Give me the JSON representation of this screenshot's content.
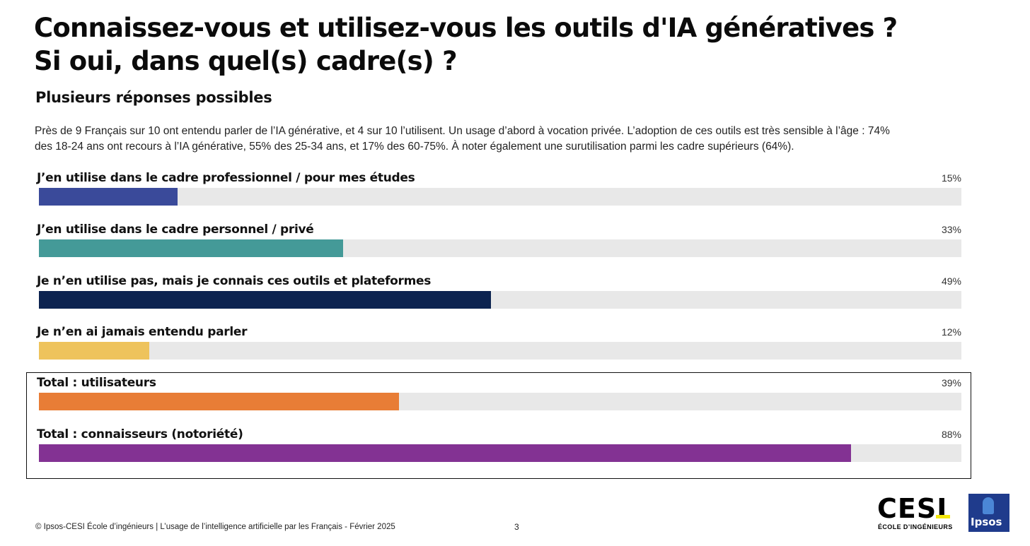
{
  "header": {
    "title_line1": "Connaissez-vous et utilisez-vous les outils d'IA génératives ?",
    "title_line2": "Si oui, dans quel(s) cadre(s) ?",
    "subtitle": "Plusieurs réponses possibles",
    "intro_line1": "Près de 9 Français sur 10 ont entendu parler de l’IA générative, et 4 sur 10 l’utilisent. Un usage d’abord à vocation privée. L’adoption de ces outils est très sensible à l’âge : 74%",
    "intro_line2": "des 18-24 ans ont recours à l’IA générative, 55% des 25-34 ans, et 17% des 60-75%. À noter également une surutilisation parmi les cadre supérieurs (64%)."
  },
  "chart_data": {
    "type": "bar",
    "orientation": "horizontal",
    "unit": "%",
    "xlim": [
      0,
      100
    ],
    "grid": false,
    "categories": [
      "J’en utilise dans le cadre professionnel / pour mes études",
      "J’en utilise dans le cadre personnel / privé",
      "Je n’en utilise pas, mais je connais ces outils et plateformes",
      "Je n’en ai jamais entendu parler",
      "Total : utilisateurs",
      "Total : connaisseurs (notoriété)"
    ],
    "values": [
      15,
      33,
      49,
      12,
      39,
      88
    ],
    "value_labels": [
      "15%",
      "33%",
      "49%",
      "12%",
      "39%",
      "88%"
    ],
    "colors": [
      "#3a4a9a",
      "#449a98",
      "#0c2350",
      "#eec35c",
      "#e87d36",
      "#833293"
    ],
    "track_color": "#e8e8e8"
  },
  "footer": {
    "source": "© Ipsos-CESI École d’ingénieurs | L’usage de l’intelligence artificielle par les Français - Février 2025",
    "page": "3"
  },
  "logos": {
    "cesi_word": "CESI",
    "cesi_sub": "ÉCOLE D’INGÉNIEURS",
    "cesi_accent_color": "#f4e70c",
    "ipsos_text": "Ipsos",
    "ipsos_color": "#1f3b8c"
  }
}
